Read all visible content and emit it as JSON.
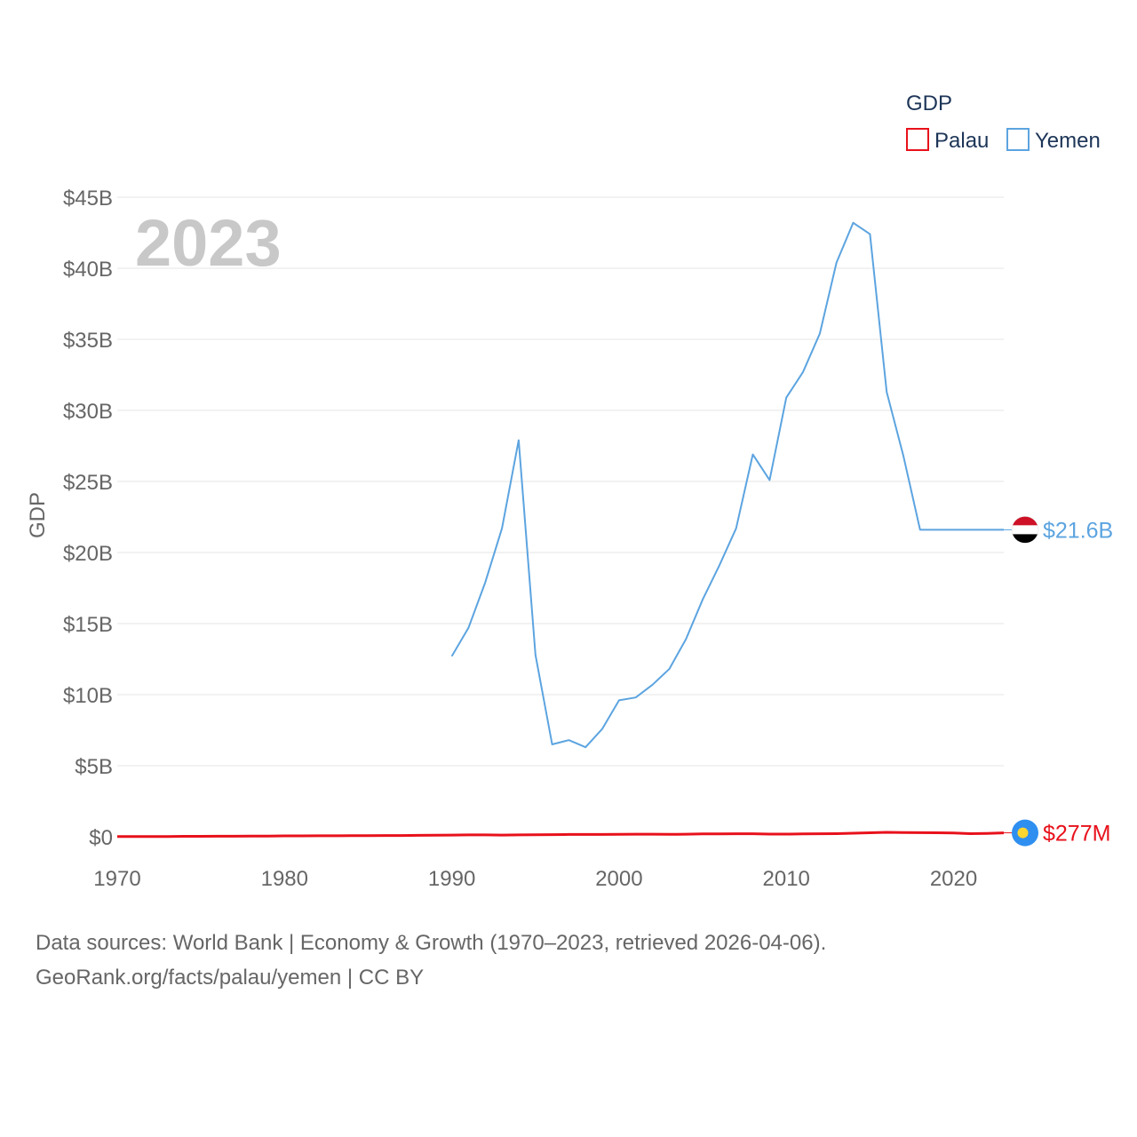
{
  "chart_data": {
    "type": "line",
    "year_label": "2023",
    "ylabel": "GDP",
    "xlabel": "",
    "xlim": [
      1970,
      2023
    ],
    "ylim": [
      0,
      45
    ],
    "x_ticks": [
      {
        "value": 1970,
        "label": "1970"
      },
      {
        "value": 1980,
        "label": "1980"
      },
      {
        "value": 1990,
        "label": "1990"
      },
      {
        "value": 2000,
        "label": "2000"
      },
      {
        "value": 2010,
        "label": "2010"
      },
      {
        "value": 2020,
        "label": "2020"
      }
    ],
    "y_ticks": [
      {
        "value": 0,
        "label": "$0"
      },
      {
        "value": 5,
        "label": "$5B"
      },
      {
        "value": 10,
        "label": "$10B"
      },
      {
        "value": 15,
        "label": "$15B"
      },
      {
        "value": 20,
        "label": "$20B"
      },
      {
        "value": 25,
        "label": "$25B"
      },
      {
        "value": 30,
        "label": "$30B"
      },
      {
        "value": 35,
        "label": "$35B"
      },
      {
        "value": 40,
        "label": "$40B"
      },
      {
        "value": 45,
        "label": "$45B"
      }
    ],
    "grid": true,
    "legend": {
      "title": "GDP",
      "placement": "top-right"
    },
    "series": [
      {
        "name": "Palau",
        "color": "#e8111b",
        "end_label": "$277M",
        "marker_icon": "palau-flag-icon",
        "flag_colors": {
          "field": "#2e8ff0",
          "disc": "#ffd530"
        },
        "x": [
          1970,
          1971,
          1972,
          1973,
          1974,
          1975,
          1976,
          1977,
          1978,
          1979,
          1980,
          1981,
          1982,
          1983,
          1984,
          1985,
          1986,
          1987,
          1988,
          1989,
          1990,
          1991,
          1992,
          1993,
          1994,
          1995,
          1996,
          1997,
          1998,
          1999,
          2000,
          2001,
          2002,
          2003,
          2004,
          2005,
          2006,
          2007,
          2008,
          2009,
          2010,
          2011,
          2012,
          2013,
          2014,
          2015,
          2016,
          2017,
          2018,
          2019,
          2020,
          2021,
          2022,
          2023
        ],
        "y": [
          0.02,
          0.02,
          0.02,
          0.02,
          0.03,
          0.03,
          0.04,
          0.04,
          0.05,
          0.05,
          0.06,
          0.06,
          0.07,
          0.07,
          0.08,
          0.08,
          0.09,
          0.09,
          0.1,
          0.11,
          0.12,
          0.13,
          0.13,
          0.12,
          0.13,
          0.14,
          0.15,
          0.16,
          0.16,
          0.16,
          0.17,
          0.18,
          0.18,
          0.17,
          0.18,
          0.2,
          0.2,
          0.21,
          0.21,
          0.19,
          0.19,
          0.2,
          0.21,
          0.22,
          0.25,
          0.28,
          0.31,
          0.3,
          0.29,
          0.28,
          0.26,
          0.22,
          0.24,
          0.277
        ]
      },
      {
        "name": "Yemen",
        "color": "#5ca4e0",
        "end_label": "$21.6B",
        "marker_icon": "yemen-flag-icon",
        "flag_colors": {
          "top": "#ce1126",
          "middle": "#ffffff",
          "bottom": "#000000"
        },
        "x": [
          1990,
          1991,
          1992,
          1993,
          1994,
          1995,
          1996,
          1997,
          1998,
          1999,
          2000,
          2001,
          2002,
          2003,
          2004,
          2005,
          2006,
          2007,
          2008,
          2009,
          2010,
          2011,
          2012,
          2013,
          2014,
          2015,
          2016,
          2017,
          2018,
          2019,
          2020,
          2021,
          2022,
          2023
        ],
        "y": [
          12.7,
          14.7,
          17.9,
          21.7,
          27.9,
          12.8,
          6.5,
          6.8,
          6.3,
          7.6,
          9.6,
          9.8,
          10.7,
          11.8,
          13.9,
          16.7,
          19.1,
          21.7,
          26.9,
          25.1,
          30.9,
          32.7,
          35.4,
          40.4,
          43.2,
          42.4,
          31.3,
          26.8,
          21.6,
          21.6,
          21.6,
          21.6,
          21.6,
          21.6
        ]
      }
    ]
  },
  "footer": {
    "sources": "Data sources: World Bank | Economy & Growth (1970–2023, retrieved 2026-04-06).",
    "credit": "GeoRank.org/facts/palau/yemen | CC BY"
  }
}
